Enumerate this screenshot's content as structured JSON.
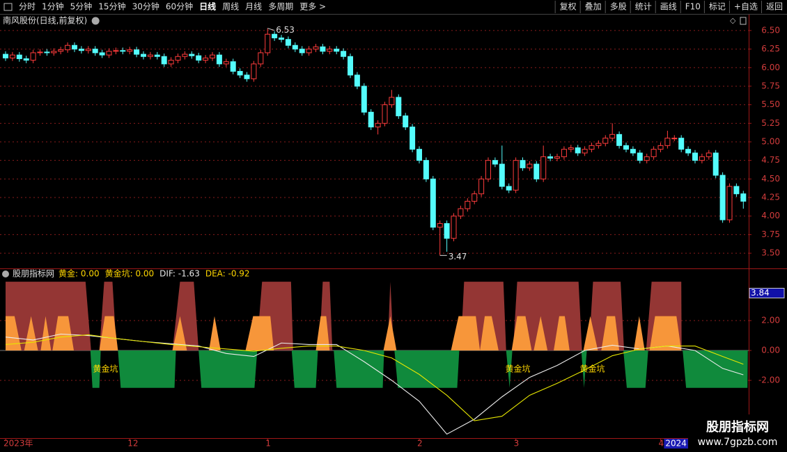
{
  "toolbar": {
    "left": [
      "分时",
      "1分钟",
      "5分钟",
      "15分钟",
      "30分钟",
      "60分钟",
      "日线",
      "周线",
      "月线",
      "多周期",
      "更多 >"
    ],
    "selected_index": 6,
    "right": [
      "复权",
      "叠加",
      "多股",
      "统计",
      "画线",
      "F10",
      "标记",
      "+自选",
      "返回"
    ]
  },
  "watermark": {
    "title": "股朋指标网",
    "url": "www.7gpzb.com"
  },
  "chart_data": [
    {
      "type": "candlestick",
      "title": "南风股份(日线,前复权)",
      "up_color": "#ff3c3c",
      "down_color": "#54fcfc",
      "grid": true,
      "ylim": [
        3.37,
        6.63
      ],
      "yticks": [
        {
          "value": 3.5,
          "label": "3.50"
        },
        3.75,
        {
          "value": 4,
          "label": "4.00"
        },
        4.25,
        {
          "value": 4.5,
          "label": "4.50"
        },
        4.75,
        {
          "value": 5,
          "label": "5.00"
        },
        5.25,
        {
          "value": 5.5,
          "label": "5.50"
        },
        5.75,
        {
          "value": 6,
          "label": "6.00"
        },
        6.25,
        {
          "value": 6.5,
          "label": "6.50"
        }
      ],
      "xticks": [
        {
          "value": 0,
          "label": "2023年"
        },
        {
          "value": 18,
          "label": "12"
        },
        {
          "value": 38,
          "label": "1"
        },
        {
          "value": 60,
          "label": "2"
        },
        {
          "value": 74,
          "label": "3"
        },
        {
          "value": 95,
          "label": "4"
        },
        {
          "value": 96,
          "label": "2024",
          "highlight": true
        }
      ],
      "max_label": 6.53,
      "min_label": 3.47,
      "open": [
        6.18,
        6.13,
        6.17,
        6.12,
        6.1,
        6.2,
        6.21,
        6.2,
        6.22,
        6.24,
        6.3,
        6.25,
        6.23,
        6.25,
        6.2,
        6.17,
        6.22,
        6.23,
        6.22,
        6.24,
        6.18,
        6.15,
        6.17,
        6.15,
        6.05,
        6.1,
        6.15,
        6.18,
        6.16,
        6.1,
        6.13,
        6.17,
        6.05,
        6.08,
        5.95,
        5.9,
        5.85,
        6.05,
        6.2,
        6.45,
        6.4,
        6.38,
        6.3,
        6.25,
        6.2,
        6.25,
        6.28,
        6.22,
        6.25,
        6.22,
        6.15,
        5.9,
        5.75,
        5.4,
        5.2,
        5.25,
        5.5,
        5.6,
        5.35,
        5.2,
        4.9,
        4.75,
        4.5,
        3.85,
        3.9,
        3.7,
        4.0,
        4.1,
        4.2,
        4.3,
        4.5,
        4.75,
        4.7,
        4.4,
        4.35,
        4.75,
        4.65,
        4.7,
        4.5,
        4.8,
        4.78,
        4.8,
        4.9,
        4.92,
        4.85,
        4.9,
        4.95,
        4.98,
        5.05,
        5.1,
        4.95,
        4.9,
        4.85,
        4.75,
        4.8,
        4.9,
        4.95,
        5.05,
        5.05,
        4.9,
        4.85,
        4.75,
        4.8,
        4.85,
        4.55,
        3.95,
        4.4,
        4.3
      ],
      "high": [
        6.22,
        6.21,
        6.21,
        6.16,
        6.24,
        6.25,
        6.25,
        6.26,
        6.28,
        6.34,
        6.34,
        6.29,
        6.29,
        6.29,
        6.24,
        6.26,
        6.27,
        6.27,
        6.28,
        6.28,
        6.22,
        6.21,
        6.21,
        6.19,
        6.14,
        6.19,
        6.22,
        6.22,
        6.2,
        6.17,
        6.21,
        6.21,
        6.12,
        6.12,
        5.99,
        5.94,
        6.09,
        6.24,
        6.53,
        6.49,
        6.44,
        6.42,
        6.34,
        6.29,
        6.29,
        6.32,
        6.32,
        6.29,
        6.29,
        6.26,
        6.19,
        5.94,
        5.79,
        5.44,
        5.29,
        5.54,
        5.7,
        5.64,
        5.39,
        5.24,
        4.94,
        4.79,
        4.54,
        3.94,
        3.94,
        4.04,
        4.14,
        4.24,
        4.34,
        4.54,
        4.79,
        4.79,
        4.95,
        4.44,
        4.79,
        4.79,
        4.74,
        4.74,
        4.95,
        4.84,
        4.84,
        4.94,
        4.96,
        4.96,
        4.94,
        4.99,
        5.02,
        5.09,
        5.25,
        5.14,
        4.99,
        4.94,
        4.89,
        4.84,
        4.94,
        4.99,
        5.15,
        5.09,
        5.09,
        4.94,
        4.89,
        4.84,
        4.89,
        4.89,
        4.59,
        4.44,
        4.44,
        4.34
      ],
      "low": [
        6.09,
        6.09,
        6.08,
        6.06,
        6.06,
        6.16,
        6.16,
        6.16,
        6.18,
        6.2,
        6.21,
        6.19,
        6.19,
        6.16,
        6.13,
        6.13,
        6.18,
        6.18,
        6.18,
        6.14,
        6.11,
        6.11,
        6.11,
        6.01,
        6.01,
        6.06,
        6.11,
        6.12,
        6.06,
        6.06,
        6.09,
        6.01,
        6.01,
        5.91,
        5.86,
        5.81,
        5.81,
        6.01,
        6.16,
        6.36,
        6.34,
        6.26,
        6.21,
        6.16,
        6.16,
        6.21,
        6.18,
        6.18,
        6.18,
        6.11,
        5.86,
        5.71,
        5.36,
        5.16,
        5.1,
        5.21,
        5.46,
        5.31,
        5.16,
        4.86,
        4.71,
        4.46,
        3.81,
        3.47,
        3.52,
        3.66,
        3.96,
        4.06,
        4.16,
        4.26,
        4.46,
        4.66,
        4.36,
        4.31,
        4.31,
        4.61,
        4.61,
        4.46,
        4.46,
        4.74,
        4.74,
        4.76,
        4.86,
        4.81,
        4.81,
        4.86,
        4.91,
        4.94,
        5.01,
        4.91,
        4.86,
        4.81,
        4.71,
        4.71,
        4.76,
        4.86,
        4.91,
        5.01,
        4.86,
        4.81,
        4.71,
        4.71,
        4.76,
        4.51,
        3.91,
        3.91,
        4.26,
        4.1
      ],
      "close": [
        6.13,
        6.17,
        6.12,
        6.1,
        6.2,
        6.21,
        6.2,
        6.22,
        6.24,
        6.3,
        6.25,
        6.23,
        6.25,
        6.2,
        6.17,
        6.22,
        6.23,
        6.22,
        6.24,
        6.18,
        6.15,
        6.17,
        6.15,
        6.05,
        6.1,
        6.15,
        6.18,
        6.16,
        6.1,
        6.13,
        6.17,
        6.05,
        6.08,
        5.95,
        5.9,
        5.85,
        6.05,
        6.2,
        6.45,
        6.4,
        6.38,
        6.3,
        6.25,
        6.2,
        6.25,
        6.28,
        6.22,
        6.25,
        6.22,
        6.15,
        5.9,
        5.75,
        5.4,
        5.2,
        5.25,
        5.5,
        5.6,
        5.35,
        5.2,
        4.9,
        4.75,
        4.5,
        3.85,
        3.9,
        3.7,
        4.0,
        4.1,
        4.2,
        4.3,
        4.5,
        4.75,
        4.7,
        4.4,
        4.35,
        4.75,
        4.65,
        4.7,
        4.5,
        4.8,
        4.78,
        4.8,
        4.9,
        4.92,
        4.85,
        4.9,
        4.95,
        4.98,
        5.05,
        5.1,
        4.95,
        4.9,
        4.85,
        4.75,
        4.8,
        4.9,
        4.95,
        5.05,
        5.05,
        4.9,
        4.85,
        4.75,
        4.8,
        4.85,
        4.55,
        3.95,
        4.4,
        4.3,
        4.2
      ]
    },
    {
      "type": "indicator",
      "title": "股朋指标网",
      "grid": true,
      "legend": [
        {
          "text": "黄金: 0.00",
          "color": "#ffd700"
        },
        {
          "text": "黄金坑: 0.00",
          "color": "#ffd700"
        },
        {
          "text": "DIF: -1.63",
          "color": "#e8e8e8"
        },
        {
          "text": "DEA: -0.92",
          "color": "#ffd700"
        }
      ],
      "ylim": [
        -5.77,
        4.84
      ],
      "yticks": [
        {
          "value": -2,
          "label": "-2.00"
        },
        {
          "value": 0,
          "label": "0.00"
        },
        {
          "value": 2,
          "label": "2.00"
        }
      ],
      "marker_value": 3.84,
      "annotations": [
        {
          "text": "黄金坑",
          "x": 14.5,
          "y": -1.25
        },
        {
          "text": "黄金坑",
          "x": 74.3,
          "y": -1.25
        },
        {
          "text": "黄金坑",
          "x": 85.1,
          "y": -1.25
        }
      ],
      "series": [
        {
          "style": "area",
          "color": "#943634",
          "x": [
            0,
            11.6,
            12.4,
            null,
            13.6,
            14.3,
            15.5,
            16.1,
            null,
            24.2,
            25.3,
            27.3,
            28,
            null,
            36.4,
            37.2,
            41.4,
            41.7,
            null,
            45.5,
            46,
            47,
            47.4,
            null,
            55.4,
            55.8,
            56.3,
            null,
            66,
            66.5,
            72.2,
            72.6,
            null,
            73.6,
            74.2,
            83.1,
            83.6,
            null,
            84.6,
            85.2,
            89.2,
            89.7,
            null,
            92.9,
            93.7,
            98,
            98.05
          ],
          "values": [
            4.6,
            4.6,
            0,
            null,
            0,
            4.6,
            4.6,
            0,
            null,
            0,
            4.6,
            4.6,
            0,
            null,
            0,
            4.6,
            4.6,
            0,
            null,
            0,
            4.6,
            4.6,
            0,
            null,
            0,
            4.6,
            0,
            null,
            0,
            4.6,
            4.6,
            0,
            null,
            0,
            4.6,
            4.6,
            0,
            null,
            0,
            4.6,
            4.6,
            0,
            null,
            0,
            4.6,
            4.6,
            0
          ]
        },
        {
          "style": "area",
          "color": "#f7963a",
          "x": [
            0,
            1.3,
            2.3,
            null,
            2.7,
            3.7,
            4.7,
            null,
            5.1,
            5.8,
            6.6,
            null,
            6.8,
            7.6,
            9.1,
            9.9,
            null,
            13.6,
            14.4,
            15.7,
            16.3,
            null,
            24.2,
            25.3,
            26.3,
            null,
            29.5,
            30.3,
            31.2,
            null,
            34.8,
            35.9,
            38.4,
            38.9,
            null,
            45,
            45.7,
            46.5,
            47,
            null,
            54.8,
            55.8,
            56.7,
            null,
            64.6,
            65.7,
            68.2,
            68.8,
            null,
            68.8,
            69.5,
            70.5,
            71.5,
            null,
            73.4,
            74.2,
            75.4,
            76.3,
            null,
            76.6,
            77.6,
            78.6,
            null,
            79.5,
            80.3,
            81.1,
            81.8,
            null,
            83.8,
            84.8,
            85.9,
            null,
            86.4,
            87.2,
            88.4,
            89,
            null,
            91.1,
            91.9,
            92.7,
            null,
            93.4,
            94.2,
            97.3,
            98
          ],
          "values": [
            2.3,
            2.3,
            0,
            null,
            0,
            2.3,
            0,
            null,
            0,
            2.3,
            0,
            null,
            0,
            2.3,
            2.3,
            0,
            null,
            0,
            2.3,
            2.3,
            0,
            null,
            0,
            2.3,
            0,
            null,
            0,
            2.3,
            0,
            null,
            0,
            2.3,
            2.3,
            0,
            null,
            0,
            2.3,
            2.3,
            0,
            null,
            0,
            2.3,
            0,
            null,
            0,
            2.3,
            2.3,
            0,
            null,
            0,
            2.3,
            2.3,
            0,
            null,
            0,
            2.3,
            2.3,
            0,
            null,
            0,
            2.3,
            0,
            null,
            0,
            2.3,
            2.3,
            0,
            null,
            0,
            2.3,
            0,
            null,
            0,
            2.3,
            2.3,
            0,
            null,
            0,
            2.3,
            0,
            null,
            0,
            2.3,
            2.3,
            0
          ]
        },
        {
          "style": "area",
          "color": "#108a3c",
          "x": [
            12.3,
            12.6,
            13.6,
            13.8,
            null,
            16.3,
            16.7,
            24.5,
            24.7,
            null,
            28,
            28.4,
            36.1,
            36.5,
            null,
            41.5,
            41.9,
            45,
            45.3,
            null,
            47.6,
            48,
            54.7,
            54.9,
            null,
            56.4,
            56.9,
            65.5,
            65.8,
            null,
            72.6,
            73.1,
            73.5,
            null,
            83.5,
            83.9,
            84.3,
            null,
            89.6,
            90.1,
            92.8,
            93.2,
            null,
            98.2,
            98.7,
            107.6,
            107.65
          ],
          "values": [
            0,
            -2.5,
            -2.5,
            0,
            null,
            0,
            -2.5,
            -2.5,
            0,
            null,
            0,
            -2.5,
            -2.5,
            0,
            null,
            0,
            -2.5,
            -2.5,
            0,
            null,
            0,
            -2.5,
            -2.5,
            0,
            null,
            0,
            -2.5,
            -2.5,
            0,
            null,
            0,
            -2.5,
            0,
            null,
            0,
            -2.5,
            0,
            null,
            0,
            -2.5,
            -2.5,
            0,
            null,
            0,
            -2.5,
            -2.5,
            0
          ]
        },
        {
          "style": "line",
          "color": "#ececec",
          "x": [
            0,
            4,
            8,
            12,
            16,
            20,
            24,
            28,
            32,
            36,
            40,
            44,
            48,
            52,
            56,
            60,
            64,
            68,
            72,
            76,
            80,
            84,
            88,
            92,
            96,
            100,
            104,
            107
          ],
          "values": [
            0.9,
            0.7,
            1.1,
            1.0,
            0.8,
            0.6,
            0.45,
            0.3,
            -0.2,
            -0.4,
            0.5,
            0.4,
            0.4,
            -0.75,
            -2.0,
            -3.4,
            -5.6,
            -4.6,
            -3.1,
            -1.8,
            -1.0,
            0.0,
            0.35,
            0.1,
            0.3,
            0.0,
            -1.2,
            -1.63
          ]
        },
        {
          "style": "line",
          "color": "#e6e600",
          "x": [
            0,
            4,
            8,
            12,
            16,
            20,
            24,
            28,
            32,
            36,
            40,
            44,
            48,
            52,
            56,
            60,
            64,
            68,
            72,
            76,
            80,
            84,
            88,
            92,
            96,
            100,
            104,
            107
          ],
          "values": [
            0.4,
            0.55,
            0.9,
            1.05,
            0.8,
            0.6,
            0.4,
            0.25,
            0.1,
            -0.05,
            0.15,
            0.3,
            0.3,
            0.0,
            -0.5,
            -1.6,
            -3.0,
            -4.7,
            -4.4,
            -3.0,
            -2.2,
            -1.3,
            -0.35,
            0.1,
            0.3,
            0.3,
            -0.4,
            -0.92
          ]
        }
      ]
    }
  ]
}
